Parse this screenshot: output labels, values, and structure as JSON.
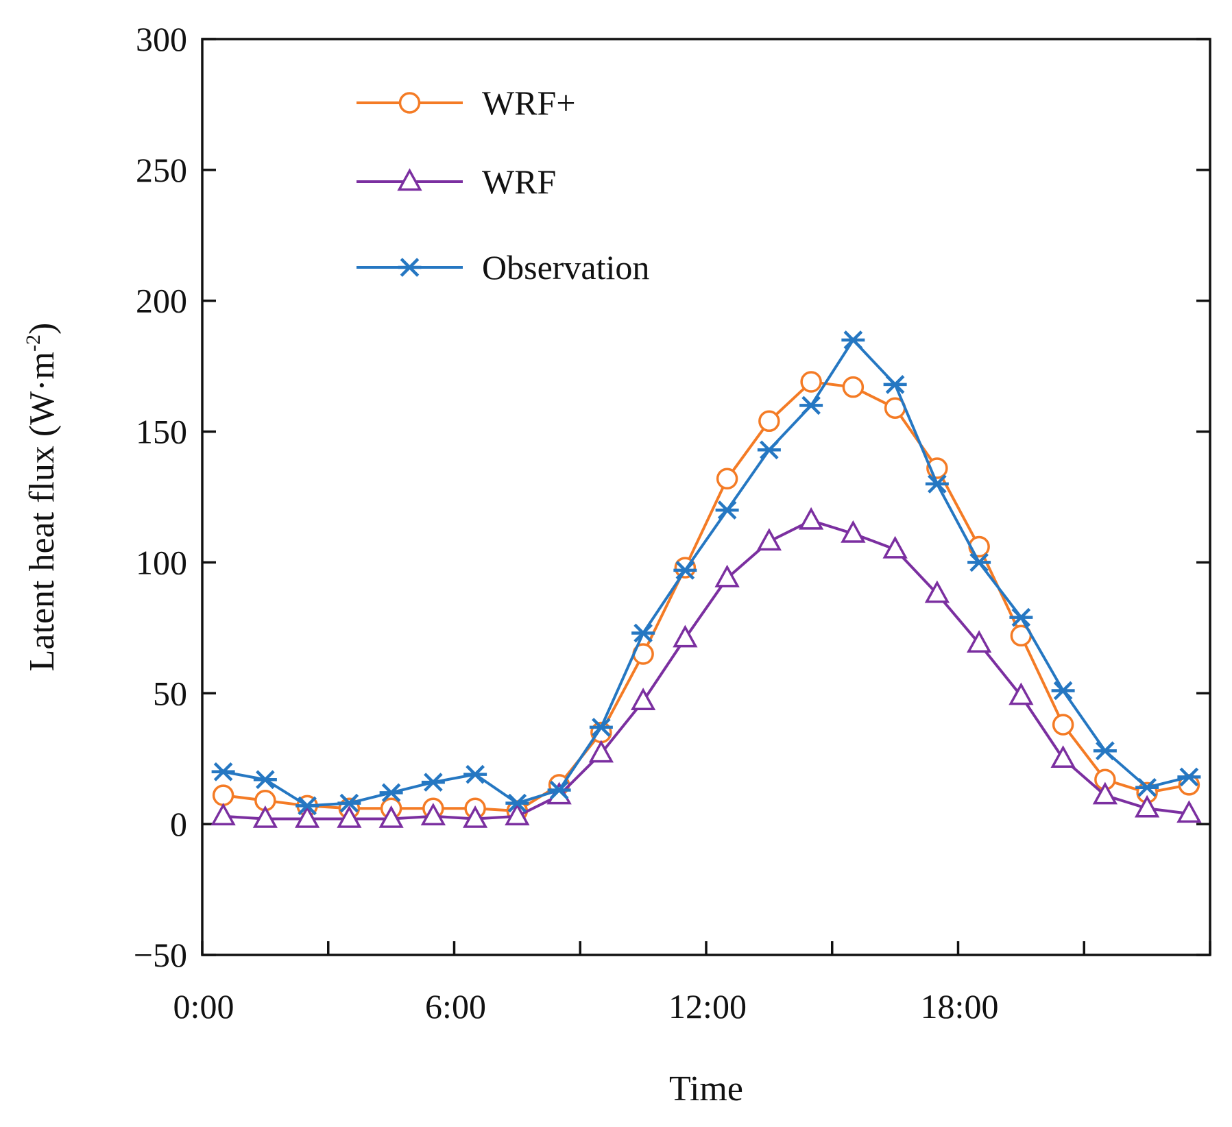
{
  "chart_data": {
    "type": "line",
    "title": "",
    "xlabel": "Time",
    "ylabel_main": "Latent heat flux (W·m",
    "ylabel_sup": "-2",
    "ylabel_close": ")",
    "x": [
      0.5,
      1.5,
      2.5,
      3.5,
      4.5,
      5.5,
      6.5,
      7.5,
      8.5,
      9.5,
      10.5,
      11.5,
      12.5,
      13.5,
      14.5,
      15.5,
      16.5,
      17.5,
      18.5,
      19.5,
      20.5,
      21.5,
      22.5,
      23.5
    ],
    "xlim": [
      0,
      24
    ],
    "ylim": [
      -50,
      300
    ],
    "xticks": [
      0,
      3,
      6,
      9,
      12,
      15,
      18,
      21,
      24
    ],
    "xtick_labels": [
      {
        "x": 0,
        "label": "0:00"
      },
      {
        "x": 6,
        "label": "6:00"
      },
      {
        "x": 12,
        "label": "12:00"
      },
      {
        "x": 18,
        "label": "18:00"
      }
    ],
    "yticks": [
      -50,
      0,
      50,
      100,
      150,
      200,
      250,
      300
    ],
    "ytick_labels": [
      "−50",
      "0",
      "50",
      "100",
      "150",
      "200",
      "250",
      "300"
    ],
    "legend_position": "top-left",
    "series": [
      {
        "name": "WRF+",
        "color": "#F47B25",
        "marker": "circle",
        "values": [
          11,
          9,
          7,
          6,
          6,
          6,
          6,
          5,
          15,
          35,
          65,
          98,
          132,
          154,
          169,
          167,
          159,
          136,
          106,
          72,
          38,
          17,
          12,
          15
        ]
      },
      {
        "name": "WRF",
        "color": "#7B2FA0",
        "marker": "triangle",
        "values": [
          3,
          2,
          2,
          2,
          2,
          3,
          2,
          3,
          11,
          27,
          47,
          71,
          94,
          108,
          116,
          111,
          105,
          88,
          69,
          49,
          25,
          11,
          6,
          4
        ]
      },
      {
        "name": "Observation",
        "color": "#2577C2",
        "marker": "asterisk",
        "values": [
          20,
          17,
          7,
          8,
          12,
          16,
          19,
          8,
          13,
          37,
          73,
          97,
          120,
          143,
          160,
          185,
          168,
          130,
          100,
          79,
          51,
          28,
          14,
          18
        ]
      }
    ]
  }
}
